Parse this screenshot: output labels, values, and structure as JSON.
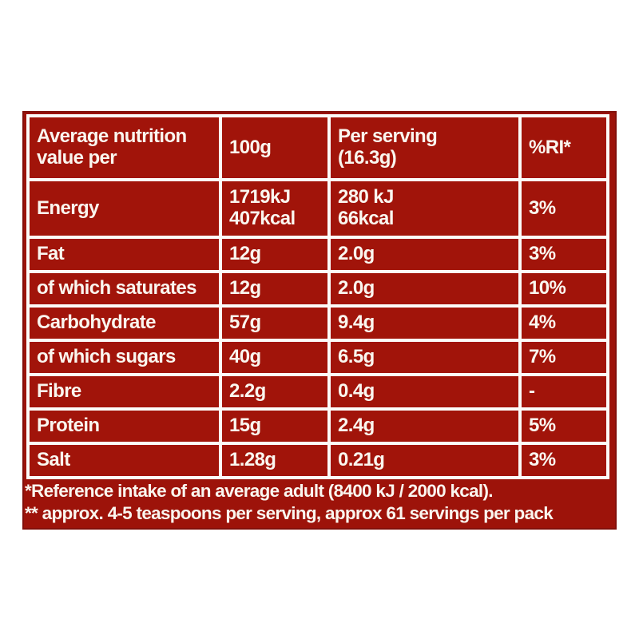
{
  "colors": {
    "panel_red": "#9d130a",
    "cell_red": "#a1140a",
    "grid_white": "#fcfbf9",
    "text_white": "#faf6ef"
  },
  "table": {
    "header": {
      "label_col": "Average nutrition\nvalue per",
      "per_100g_col": "100g",
      "per_serving_col": "Per serving\n(16.3g)",
      "ri_col": "%RI*"
    },
    "rows": [
      {
        "label": "Energy",
        "per_100g": "1719kJ\n407kcal",
        "per_serving": "280 kJ\n66kcal",
        "ri": "3%"
      },
      {
        "label": "Fat",
        "per_100g": "12g",
        "per_serving": "2.0g",
        "ri": "3%"
      },
      {
        "label": "of which saturates",
        "per_100g": "12g",
        "per_serving": "2.0g",
        "ri": "10%"
      },
      {
        "label": "Carbohydrate",
        "per_100g": "57g",
        "per_serving": "9.4g",
        "ri": "4%"
      },
      {
        "label": "of which sugars",
        "per_100g": "40g",
        "per_serving": "6.5g",
        "ri": "7%"
      },
      {
        "label": "Fibre",
        "per_100g": "2.2g",
        "per_serving": "0.4g",
        "ri": "-"
      },
      {
        "label": "Protein",
        "per_100g": "15g",
        "per_serving": "2.4g",
        "ri": "5%"
      },
      {
        "label": "Salt",
        "per_100g": "1.28g",
        "per_serving": "0.21g",
        "ri": "3%"
      }
    ]
  },
  "footnotes": {
    "line1": "*Reference intake of an average adult (8400 kJ / 2000 kcal).",
    "line2": "** approx. 4-5 teaspoons per serving, approx 61 servings per pack"
  }
}
